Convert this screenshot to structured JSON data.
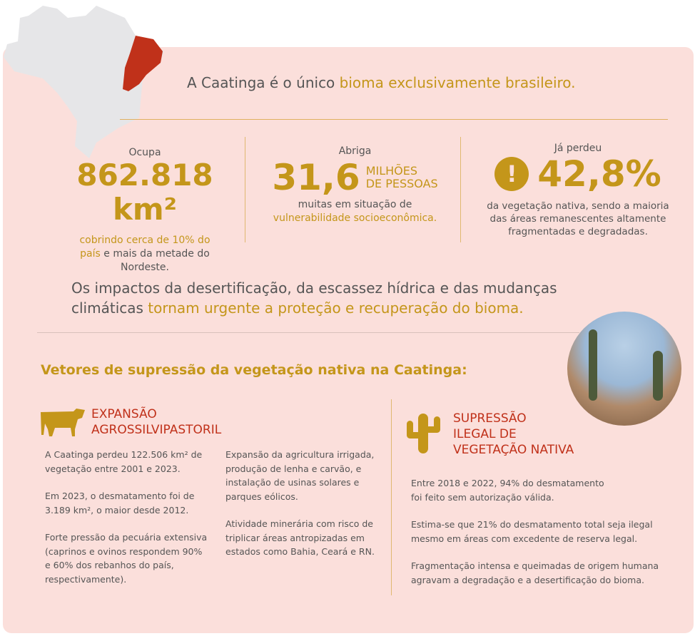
{
  "colors": {
    "background": "#fbdfdb",
    "gold": "#c4961a",
    "red": "#c0311a",
    "text": "#555555"
  },
  "headline": {
    "part1": "A Caatinga é o único ",
    "part2": "bioma exclusivamente brasileiro."
  },
  "stats": [
    {
      "label": "Ocupa",
      "value": "862.818 km²",
      "desc_gold": "cobrindo cerca de 10% do país",
      "desc_rest": " e mais da metade do Nordeste."
    },
    {
      "label": "Abriga",
      "value": "31,6",
      "unit1": "MILHÕES",
      "unit2": "DE PESSOAS",
      "desc_rest": "muitas em situação de",
      "desc_gold": "vulnerabilidade socioeconômica."
    },
    {
      "label": "Já perdeu",
      "icon": "exclamation-icon",
      "value": "42,8%",
      "desc_rest": "da vegetação nativa, sendo a maioria das áreas remanescentes altamente fragmentadas e degradadas."
    }
  ],
  "impact": {
    "part1": "Os impactos da desertificação, da escassez hídrica e das mudanças climáticas ",
    "part2": "tornam urgente a proteção e recuperação do bioma."
  },
  "vectors_title": "Vetores de supressão da vegetação nativa na Caatinga:",
  "sections": [
    {
      "icon": "cow-icon",
      "title1": "EXPANSÃO",
      "title2": "AGROSSILVIPASTORIL",
      "col1": [
        "A Caatinga perdeu 122.506 km² de vegetação entre 2001 e 2023.",
        "Em 2023, o desmatamento foi de 3.189 km², o maior desde 2012.",
        "Forte pressão da pecuária extensiva (caprinos e ovinos respondem 90% e 60% dos rebanhos do país, respectivamente)."
      ],
      "col2": [
        "Expansão da agricultura irrigada, produção de lenha e carvão, e instalação de usinas solares e parques eólicos.",
        "Atividade minerária com risco de triplicar áreas antropizadas em estados como Bahia, Ceará e RN."
      ]
    },
    {
      "icon": "cactus-icon",
      "title1": "SUPRESSÃO",
      "title2": "ILEGAL DE",
      "title3": "VEGETAÇÃO NATIVA",
      "paras": [
        "Entre 2018 e 2022, 94% do desmatamento foi feito sem autorização válida.",
        "Estima-se que 21% do desmatamento total seja ilegal mesmo em áreas com excedente de reserva legal.",
        "Fragmentação intensa e queimadas de origem humana agravam a degradação e a desertificação do bioma."
      ]
    }
  ]
}
